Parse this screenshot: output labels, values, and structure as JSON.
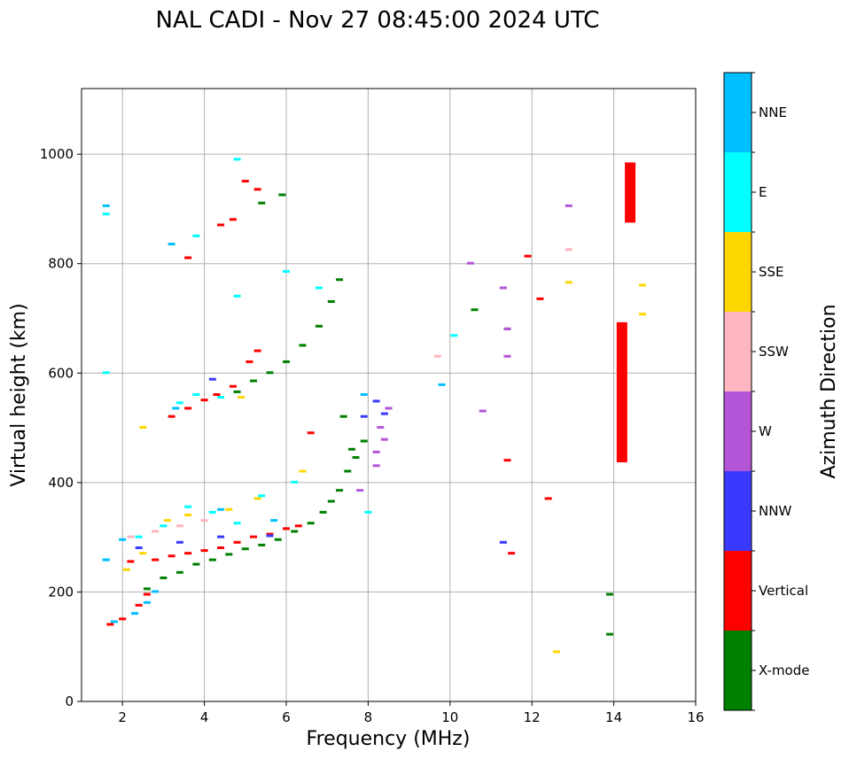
{
  "chart_data": {
    "type": "scatter",
    "title": "NAL CADI - Nov 27 08:45:00 2024 UTC",
    "xlabel": "Frequency (MHz)",
    "ylabel": "Virtual height (km)",
    "xlim": [
      1,
      16
    ],
    "ylim": [
      0,
      1120
    ],
    "xticks": [
      2,
      4,
      6,
      8,
      10,
      12,
      14,
      16
    ],
    "yticks": [
      0,
      200,
      400,
      600,
      800,
      1000
    ],
    "grid": true,
    "colorbar": {
      "title": "Azimuth Direction",
      "position": "right",
      "categories": [
        {
          "name": "X-mode",
          "color": "#008000"
        },
        {
          "name": "Vertical",
          "color": "#ff0000"
        },
        {
          "name": "NNW",
          "color": "#3a3aff"
        },
        {
          "name": "W",
          "color": "#b455d8"
        },
        {
          "name": "SSW",
          "color": "#ffb6c1"
        },
        {
          "name": "SSE",
          "color": "#ffd700"
        },
        {
          "name": "E",
          "color": "#00ffff"
        },
        {
          "name": "NNE",
          "color": "#00bfff"
        }
      ]
    },
    "series": [
      {
        "name": "X-mode",
        "points": [
          [
            2.6,
            205
          ],
          [
            3.0,
            225
          ],
          [
            3.4,
            235
          ],
          [
            3.8,
            250
          ],
          [
            4.2,
            258
          ],
          [
            4.6,
            268
          ],
          [
            5.0,
            278
          ],
          [
            5.4,
            285
          ],
          [
            5.8,
            295
          ],
          [
            6.2,
            310
          ],
          [
            6.6,
            325
          ],
          [
            6.9,
            345
          ],
          [
            7.1,
            365
          ],
          [
            7.3,
            385
          ],
          [
            7.5,
            420
          ],
          [
            7.7,
            445
          ],
          [
            7.9,
            475
          ],
          [
            4.8,
            565
          ],
          [
            5.2,
            585
          ],
          [
            5.6,
            600
          ],
          [
            6.0,
            620
          ],
          [
            6.4,
            650
          ],
          [
            6.8,
            685
          ],
          [
            7.1,
            730
          ],
          [
            7.3,
            770
          ],
          [
            5.4,
            910
          ],
          [
            5.9,
            925
          ],
          [
            10.6,
            715
          ],
          [
            11.4,
            680
          ],
          [
            13.9,
            195
          ],
          [
            13.9,
            122
          ],
          [
            7.4,
            520
          ],
          [
            7.6,
            460
          ]
        ]
      },
      {
        "name": "Vertical",
        "points": [
          [
            1.7,
            140
          ],
          [
            2.0,
            150
          ],
          [
            2.4,
            175
          ],
          [
            2.6,
            195
          ],
          [
            2.2,
            255
          ],
          [
            2.8,
            258
          ],
          [
            3.2,
            265
          ],
          [
            3.6,
            270
          ],
          [
            4.0,
            275
          ],
          [
            4.4,
            280
          ],
          [
            4.8,
            290
          ],
          [
            5.2,
            300
          ],
          [
            5.6,
            305
          ],
          [
            6.0,
            315
          ],
          [
            6.3,
            320
          ],
          [
            3.2,
            520
          ],
          [
            3.6,
            535
          ],
          [
            4.0,
            550
          ],
          [
            4.3,
            560
          ],
          [
            4.7,
            575
          ],
          [
            5.1,
            620
          ],
          [
            5.3,
            640
          ],
          [
            5.0,
            950
          ],
          [
            5.3,
            935
          ],
          [
            4.4,
            870
          ],
          [
            3.6,
            810
          ],
          [
            4.7,
            880
          ],
          [
            11.9,
            813
          ],
          [
            12.2,
            735
          ],
          [
            11.4,
            440
          ],
          [
            12.4,
            370
          ],
          [
            11.5,
            270
          ],
          [
            6.6,
            490
          ]
        ]
      },
      {
        "name": "NNW",
        "points": [
          [
            2.4,
            280
          ],
          [
            3.4,
            290
          ],
          [
            4.4,
            300
          ],
          [
            5.6,
            302
          ],
          [
            8.2,
            548
          ],
          [
            8.4,
            525
          ],
          [
            11.3,
            290
          ],
          [
            7.9,
            520
          ],
          [
            4.2,
            588
          ]
        ]
      },
      {
        "name": "W",
        "points": [
          [
            8.2,
            455
          ],
          [
            8.4,
            478
          ],
          [
            8.3,
            500
          ],
          [
            8.5,
            535
          ],
          [
            10.8,
            530
          ],
          [
            11.3,
            755
          ],
          [
            11.4,
            680
          ],
          [
            11.4,
            630
          ],
          [
            10.5,
            800
          ],
          [
            12.9,
            905
          ],
          [
            8.2,
            430
          ],
          [
            7.8,
            385
          ]
        ]
      },
      {
        "name": "SSW",
        "points": [
          [
            2.2,
            300
          ],
          [
            2.8,
            310
          ],
          [
            3.4,
            320
          ],
          [
            4.0,
            330
          ],
          [
            12.9,
            825
          ],
          [
            9.7,
            630
          ]
        ]
      },
      {
        "name": "SSE",
        "points": [
          [
            2.1,
            240
          ],
          [
            2.5,
            270
          ],
          [
            3.1,
            330
          ],
          [
            3.6,
            340
          ],
          [
            4.6,
            350
          ],
          [
            5.3,
            370
          ],
          [
            6.4,
            420
          ],
          [
            12.9,
            765
          ],
          [
            14.7,
            760
          ],
          [
            14.7,
            707
          ],
          [
            12.6,
            90
          ],
          [
            2.5,
            500
          ],
          [
            4.9,
            555
          ]
        ]
      },
      {
        "name": "E",
        "points": [
          [
            1.6,
            258
          ],
          [
            2.4,
            300
          ],
          [
            3.0,
            320
          ],
          [
            3.6,
            355
          ],
          [
            4.2,
            345
          ],
          [
            4.8,
            325
          ],
          [
            5.4,
            375
          ],
          [
            6.2,
            400
          ],
          [
            3.4,
            545
          ],
          [
            3.8,
            560
          ],
          [
            4.4,
            555
          ],
          [
            1.6,
            600
          ],
          [
            1.6,
            890
          ],
          [
            3.8,
            850
          ],
          [
            4.8,
            990
          ],
          [
            4.8,
            740
          ],
          [
            6.0,
            785
          ],
          [
            6.8,
            755
          ],
          [
            8.0,
            345
          ],
          [
            10.1,
            668
          ]
        ]
      },
      {
        "name": "NNE",
        "points": [
          [
            1.6,
            258
          ],
          [
            1.8,
            145
          ],
          [
            2.3,
            160
          ],
          [
            2.6,
            180
          ],
          [
            2.8,
            200
          ],
          [
            2.0,
            295
          ],
          [
            3.3,
            535
          ],
          [
            1.6,
            905
          ],
          [
            3.2,
            835
          ],
          [
            4.4,
            350
          ],
          [
            9.8,
            578
          ],
          [
            5.7,
            330
          ],
          [
            7.9,
            560
          ]
        ]
      }
    ],
    "bars": [
      {
        "name": "Vertical",
        "x": 14.4,
        "y_from": 875,
        "y_to": 985
      },
      {
        "name": "Vertical",
        "x": 14.2,
        "y_from": 437,
        "y_to": 693
      }
    ]
  }
}
